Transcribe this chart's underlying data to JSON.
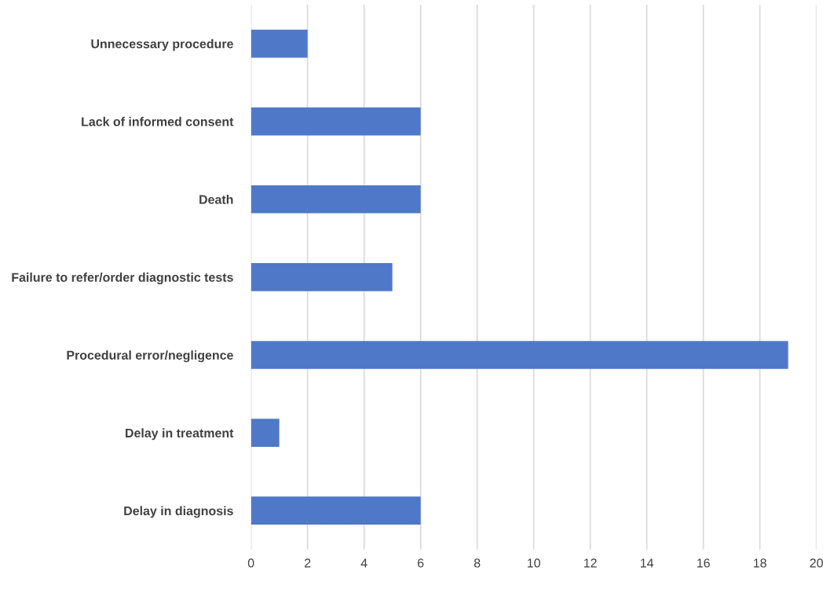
{
  "chart_data": {
    "type": "bar",
    "orientation": "horizontal",
    "categories": [
      "Unnecessary procedure",
      "Lack of informed consent",
      "Death",
      "Failure to refer/order diagnostic tests",
      "Procedural error/negligence",
      "Delay in treatment",
      "Delay in diagnosis"
    ],
    "values": [
      2,
      6,
      6,
      5,
      19,
      1,
      6
    ],
    "color": "#5078c8",
    "xlim": [
      0,
      20
    ],
    "xticks": [
      0,
      2,
      4,
      6,
      8,
      10,
      12,
      14,
      16,
      18,
      20
    ],
    "grid": "x"
  }
}
